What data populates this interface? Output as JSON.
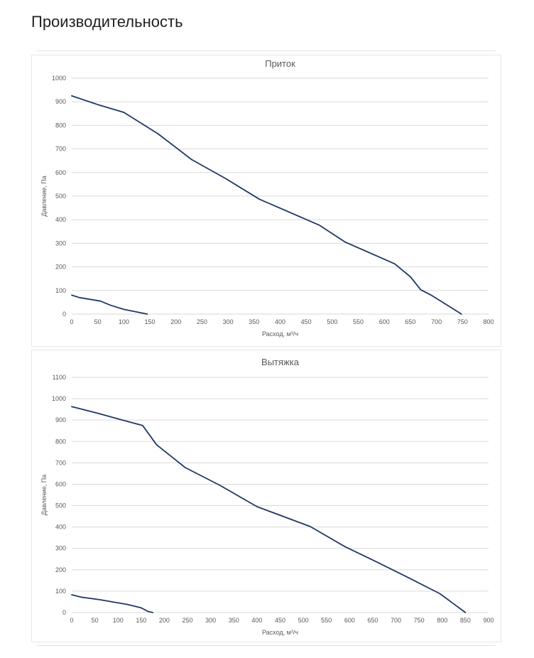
{
  "page": {
    "title": "Производительность"
  },
  "colors": {
    "line": "#1f3864",
    "grid": "#d9d9d9",
    "text": "#595959"
  },
  "chart_data": [
    {
      "type": "line",
      "title": "Приток",
      "xlabel": "Расход, м³/ч",
      "ylabel": "Давление, Па",
      "xlim": [
        0,
        800
      ],
      "ylim": [
        0,
        1000
      ],
      "xticks": [
        0,
        50,
        100,
        150,
        200,
        250,
        300,
        350,
        400,
        450,
        500,
        550,
        600,
        650,
        700,
        750,
        800
      ],
      "yticks": [
        0,
        100,
        200,
        300,
        400,
        500,
        600,
        700,
        800,
        900,
        1000
      ],
      "grid": true,
      "legend": "none",
      "series": [
        {
          "points": [
            [
              0,
              925
            ],
            [
              50,
              888
            ],
            [
              100,
              855
            ],
            [
              165,
              765
            ],
            [
              230,
              655
            ],
            [
              295,
              575
            ],
            [
              360,
              487
            ],
            [
              475,
              377
            ],
            [
              525,
              305
            ],
            [
              620,
              213
            ],
            [
              650,
              158
            ],
            [
              670,
              103
            ],
            [
              690,
              80
            ],
            [
              748,
              0
            ]
          ]
        },
        {
          "points": [
            [
              0,
              80
            ],
            [
              15,
              70
            ],
            [
              55,
              55
            ],
            [
              75,
              37
            ],
            [
              100,
              20
            ],
            [
              145,
              0
            ]
          ]
        }
      ]
    },
    {
      "type": "line",
      "title": "Вытяжка",
      "xlabel": "Расход, м³/ч",
      "ylabel": "Давление, Па",
      "xlim": [
        0,
        900
      ],
      "ylim": [
        0,
        1100
      ],
      "xticks": [
        0,
        50,
        100,
        150,
        200,
        250,
        300,
        350,
        400,
        450,
        500,
        550,
        600,
        650,
        700,
        750,
        800,
        850,
        900
      ],
      "yticks": [
        0,
        100,
        200,
        300,
        400,
        500,
        600,
        700,
        800,
        900,
        1000,
        1100
      ],
      "grid": true,
      "legend": "none",
      "series": [
        {
          "points": [
            [
              0,
              963
            ],
            [
              60,
              930
            ],
            [
              110,
              900
            ],
            [
              153,
              875
            ],
            [
              183,
              785
            ],
            [
              245,
              678
            ],
            [
              320,
              595
            ],
            [
              400,
              495
            ],
            [
              515,
              402
            ],
            [
              590,
              308
            ],
            [
              660,
              235
            ],
            [
              730,
              160
            ],
            [
              795,
              88
            ],
            [
              850,
              0
            ]
          ]
        },
        {
          "points": [
            [
              0,
              83
            ],
            [
              20,
              72
            ],
            [
              60,
              60
            ],
            [
              120,
              38
            ],
            [
              150,
              22
            ],
            [
              165,
              5
            ],
            [
              175,
              0
            ]
          ]
        }
      ]
    }
  ]
}
